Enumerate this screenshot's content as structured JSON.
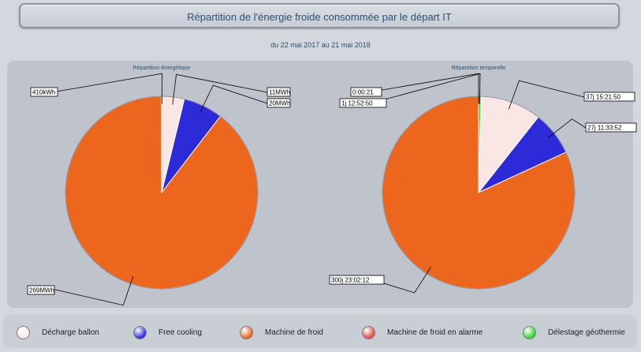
{
  "header": {
    "title": "Répartition de l'énergie froide consommée par le départ IT",
    "period": "du 22 mai 2017 au 21 mai 2018"
  },
  "legend": [
    {
      "label": "Décharge ballon",
      "color": "#fbe6e6",
      "icon": "legend-dot"
    },
    {
      "label": "Free cooling",
      "color": "#2d2ad8",
      "icon": "legend-dot"
    },
    {
      "label": "Machine de froid",
      "color": "#ec661e",
      "icon": "legend-dot"
    },
    {
      "label": "Machine de froid en alarme",
      "color": "#e04a4a",
      "icon": "legend-dot"
    },
    {
      "label": "Délestage géothermie",
      "color": "#2fd62f",
      "icon": "legend-dot"
    }
  ],
  "chart_data": [
    {
      "type": "pie",
      "title": "Répartition énergétique",
      "slices": [
        {
          "category": "Délestage géothermie",
          "label": "410kWh",
          "value": 0.41,
          "color": "#2fd62f"
        },
        {
          "category": "Décharge ballon",
          "label": "11MWh",
          "value": 11,
          "color": "#fbe6e6"
        },
        {
          "category": "Free cooling",
          "label": "20MWh",
          "value": 20,
          "color": "#2d2ad8"
        },
        {
          "category": "Machine de froid",
          "label": "269MWh",
          "value": 269,
          "color": "#ec661e"
        }
      ]
    },
    {
      "type": "pie",
      "title": "Répartition temporelle",
      "slices": [
        {
          "category": "Machine de froid en alarme",
          "label": "0:00:21",
          "value": 0.0002,
          "color": "#e04a4a"
        },
        {
          "category": "Délestage géothermie",
          "label": "1j 12:52:50",
          "value": 1.537,
          "color": "#2fd62f"
        },
        {
          "category": "Décharge ballon",
          "label": "37j 15:21:50",
          "value": 37.64,
          "color": "#fbe6e6"
        },
        {
          "category": "Free cooling",
          "label": "27j 11:33:52",
          "value": 27.482,
          "color": "#2d2ad8"
        },
        {
          "category": "Machine de froid",
          "label": "300j 23:02:12",
          "value": 300.96,
          "color": "#ec661e"
        }
      ]
    }
  ]
}
